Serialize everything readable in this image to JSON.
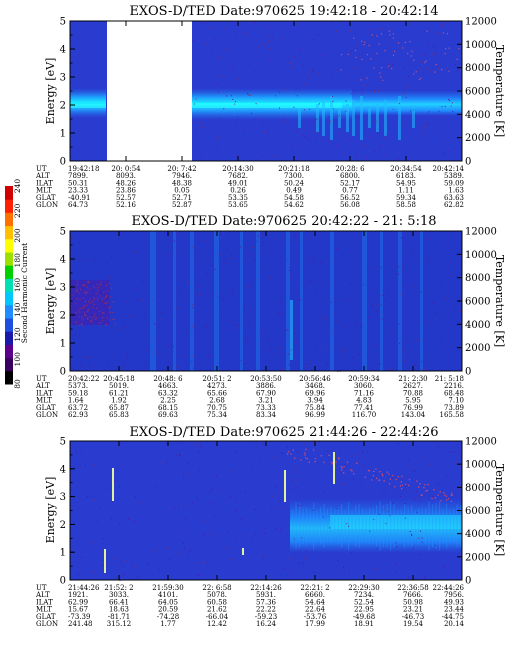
{
  "chart_data": [
    {
      "type": "heatmap",
      "title": "EXOS-D/TED   Date:970625   19:42:18 - 20:42:14",
      "ylabel": "Energy [eV]",
      "y2label": "Temperature [K]",
      "ylim": [
        0,
        5
      ],
      "y2lim": [
        0,
        12000
      ],
      "yticks": [
        "0",
        "1",
        "2",
        "3",
        "4",
        "5"
      ],
      "y2ticks": [
        "0",
        "2000",
        "4000",
        "6000",
        "8000",
        "10000",
        "12000"
      ],
      "gap": {
        "start_index": 1,
        "end_index": 1
      },
      "table_labels": [
        "UT",
        "ALT",
        "ILAT",
        "MLT",
        "GLAT",
        "GLON"
      ],
      "table_columns": [
        [
          "19:42:18",
          "7899.",
          "50.31",
          "23.33",
          "-40.91",
          "64.73"
        ],
        [
          "20: 0:54",
          "8093.",
          "48.26",
          "23.86",
          "52.57",
          "52.16"
        ],
        [
          "20: 7:42",
          "7946.",
          "48.38",
          "0.05",
          "52.71",
          "52.87"
        ],
        [
          "20:14:30",
          "7682.",
          "49.01",
          "0.26",
          "53.35",
          "53.65"
        ],
        [
          "20:21:18",
          "7300.",
          "50.24",
          "0.49",
          "54.58",
          "54.62"
        ],
        [
          "20:28: 6",
          "6800.",
          "52.17",
          "0.77",
          "56.52",
          "56.08"
        ],
        [
          "20:34:54",
          "6183.",
          "54.95",
          "1.11",
          "59.34",
          "58.58"
        ],
        [
          "20:42:14",
          "5389.",
          "59.09",
          "1.63",
          "63.63",
          "62.82"
        ]
      ]
    },
    {
      "type": "heatmap",
      "title": "EXOS-D/TED   Date:970625   20:42:22 - 21: 5:18",
      "ylabel": "Energy [eV]",
      "y2label": "Temperature [K]",
      "ylim": [
        0,
        5
      ],
      "y2lim": [
        0,
        12000
      ],
      "yticks": [
        "0",
        "1",
        "2",
        "3",
        "4",
        "5"
      ],
      "y2ticks": [
        "0",
        "2000",
        "4000",
        "6000",
        "8000",
        "10000",
        "12000"
      ],
      "table_labels": [
        "UT",
        "ALT",
        "ILAT",
        "MLT",
        "GLAT",
        "GLON"
      ],
      "table_columns": [
        [
          "20:42:22",
          "5373.",
          "59.18",
          "1.64",
          "63.72",
          "62.93"
        ],
        [
          "20:45:18",
          "5019.",
          "61.21",
          "1.92",
          "65.87",
          "65.83"
        ],
        [
          "20:48: 6",
          "4663.",
          "63.32",
          "2.25",
          "68.15",
          "69.63"
        ],
        [
          "20:51: 2",
          "4273.",
          "65.66",
          "2.68",
          "70.75",
          "75.34"
        ],
        [
          "20:53:50",
          "3886.",
          "67.90",
          "3.21",
          "73.33",
          "83.34"
        ],
        [
          "20:56:46",
          "3468.",
          "69.96",
          "3.94",
          "75.84",
          "96.99"
        ],
        [
          "20:59:34",
          "3060.",
          "71.16",
          "4.83",
          "77.41",
          "116.70"
        ],
        [
          "21: 2:30",
          "2627.",
          "70.88",
          "5.95",
          "76.99",
          "143.04"
        ],
        [
          "21: 5:18",
          "2216.",
          "68.48",
          "7.10",
          "73.89",
          "165.58"
        ]
      ]
    },
    {
      "type": "heatmap",
      "title": "EXOS-D/TED   Date:970625   21:44:26 - 22:44:26",
      "ylabel": "Energy [eV]",
      "y2label": "Temperature [K]",
      "ylim": [
        0,
        5
      ],
      "y2lim": [
        0,
        12000
      ],
      "yticks": [
        "0",
        "1",
        "2",
        "3",
        "4",
        "5"
      ],
      "y2ticks": [
        "0",
        "2000",
        "4000",
        "6000",
        "8000",
        "10000",
        "12000"
      ],
      "table_labels": [
        "UT",
        "ALT",
        "ILAT",
        "MLT",
        "GLAT",
        "GLON"
      ],
      "table_columns": [
        [
          "21:44:26",
          "1921.",
          "62.99",
          "15.67",
          "-73.39",
          "241.48"
        ],
        [
          "21:52: 2",
          "3033.",
          "66.41",
          "18.63",
          "-81.71",
          "315.12"
        ],
        [
          "21:59:30",
          "4101.",
          "64.05",
          "20.59",
          "-74.28",
          "1.77"
        ],
        [
          "22: 6:58",
          "5078.",
          "60.58",
          "21.62",
          "-66.04",
          "12.42"
        ],
        [
          "22:14:26",
          "5931.",
          "57.36",
          "22.22",
          "-59.23",
          "16.24"
        ],
        [
          "22:21: 2",
          "6660.",
          "54.64",
          "22.64",
          "-53.76",
          "17.99"
        ],
        [
          "22:29:30",
          "7234.",
          "52.54",
          "22.95",
          "-49.68",
          "18.91"
        ],
        [
          "22:36:58",
          "7666.",
          "50.98",
          "23.21",
          "-46.73",
          "19.54"
        ],
        [
          "22:44:26",
          "7956.",
          "49.93",
          "23.44",
          "-44.75",
          "20.14"
        ]
      ]
    }
  ],
  "colorbar": {
    "label": "Second Harmonic Current",
    "ticks": [
      "80",
      "100",
      "120",
      "140",
      "160",
      "180",
      "200",
      "220",
      "240"
    ],
    "colors": [
      "#000000",
      "#3a0060",
      "#5a008c",
      "#1a1aa8",
      "#1f4fe0",
      "#1f8cff",
      "#00c8ff",
      "#00e0b4",
      "#00d000",
      "#9be000",
      "#ffff00",
      "#ffc000",
      "#ff7000",
      "#ff2000",
      "#d00000"
    ]
  }
}
